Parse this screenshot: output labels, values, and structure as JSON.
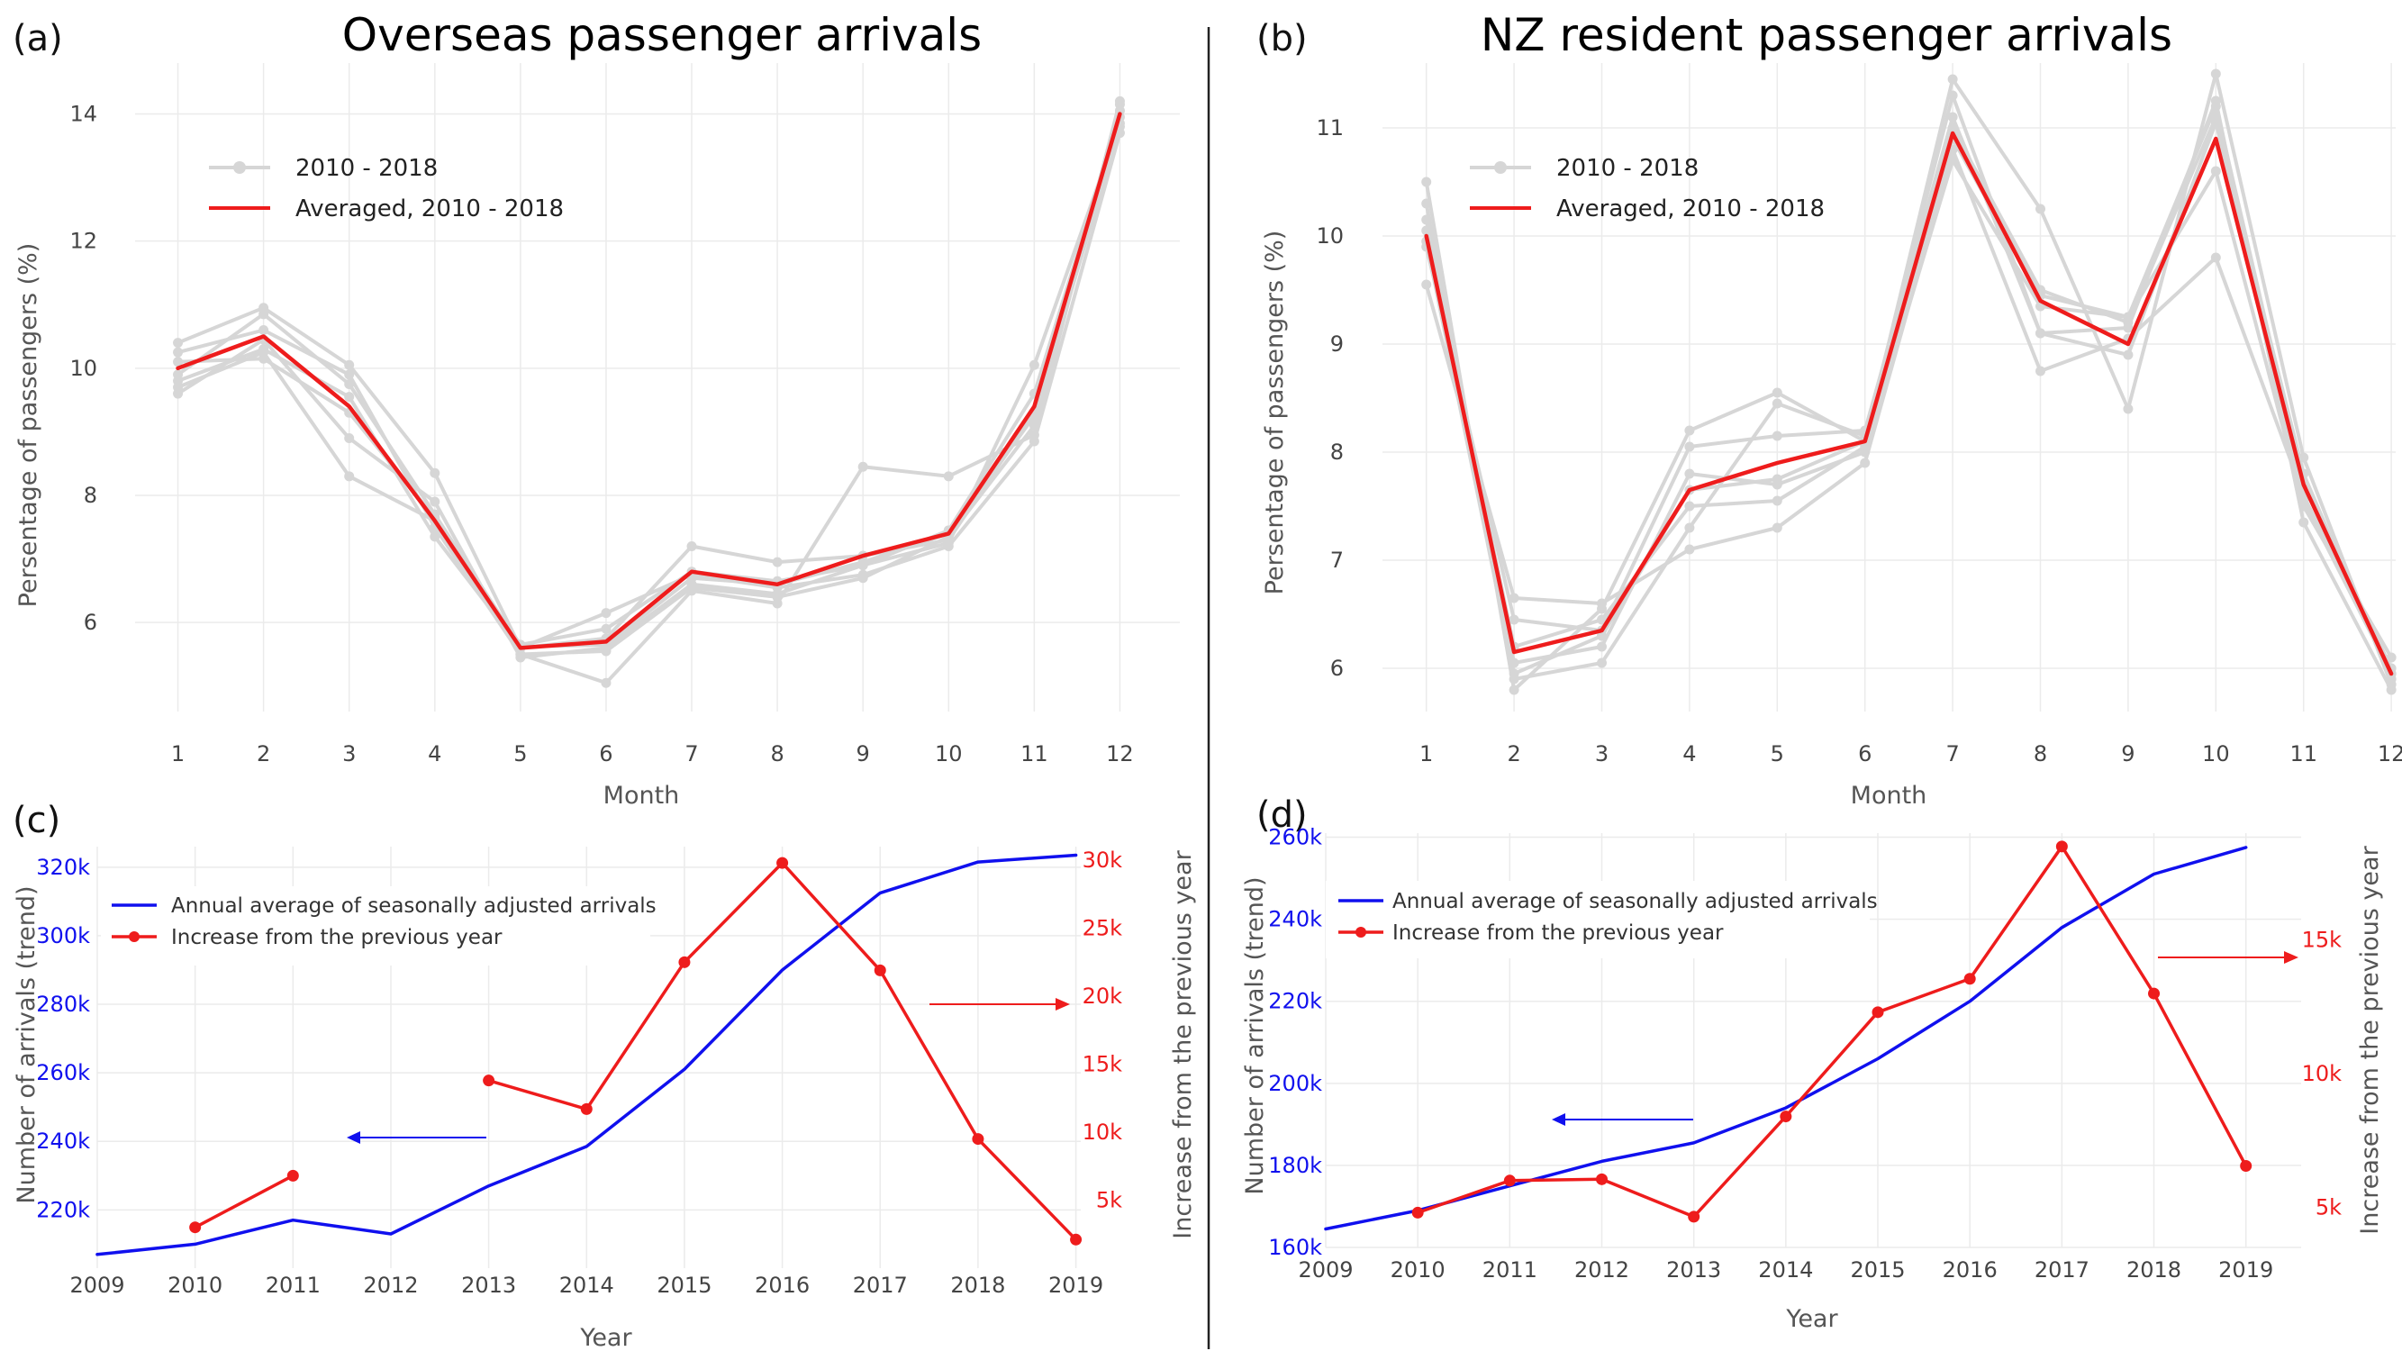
{
  "colors": {
    "gray_series": "#d6d6d6",
    "average": "#ee1c1c",
    "blue": "#1010ee",
    "red": "#ee1c1c",
    "grid": "#ebebeb",
    "divider": "#222222"
  },
  "panels": {
    "a": {
      "letter": "(a)"
    },
    "b": {
      "letter": "(b)"
    },
    "c": {
      "letter": "(c)"
    },
    "d": {
      "letter": "(d)"
    }
  },
  "chart_data": [
    {
      "id": "a",
      "type": "line",
      "title": "Overseas passenger arrivals",
      "xlabel": "Month",
      "ylabel": "Persentage of passengers (%)",
      "x": [
        1,
        2,
        3,
        4,
        5,
        6,
        7,
        8,
        9,
        10,
        11,
        12
      ],
      "xlim": [
        0.5,
        12.7
      ],
      "ylim": [
        4.6,
        14.8
      ],
      "yticks": [
        6,
        8,
        10,
        12,
        14
      ],
      "grid": true,
      "legend_position": "top-left",
      "legend": [
        "2010 - 2018",
        "Averaged, 2010 - 2018"
      ],
      "gray_series": [
        [
          10.4,
          10.95,
          10.05,
          8.35,
          5.6,
          6.15,
          6.75,
          6.55,
          6.75,
          7.2,
          8.85,
          13.7
        ],
        [
          10.25,
          10.6,
          9.9,
          7.5,
          5.5,
          5.05,
          6.5,
          6.3,
          8.45,
          8.3,
          8.95,
          14.2
        ],
        [
          9.6,
          10.45,
          8.9,
          7.9,
          5.45,
          5.6,
          6.6,
          6.45,
          6.9,
          7.25,
          10.05,
          13.85
        ],
        [
          9.8,
          10.3,
          9.55,
          7.35,
          5.6,
          5.75,
          7.2,
          6.95,
          7.05,
          7.3,
          9.3,
          14.05
        ],
        [
          9.7,
          10.25,
          8.3,
          7.6,
          5.65,
          5.9,
          6.8,
          6.65,
          6.9,
          7.45,
          9.6,
          13.95
        ],
        [
          10.1,
          10.15,
          9.3,
          7.65,
          5.5,
          5.55,
          6.55,
          6.4,
          6.7,
          7.35,
          9.1,
          14.15
        ],
        [
          9.9,
          10.85,
          9.75,
          7.7,
          5.62,
          5.65,
          6.7,
          6.6,
          6.95,
          7.4,
          9.25,
          13.8
        ]
      ],
      "average": [
        10.0,
        10.5,
        9.4,
        7.6,
        5.6,
        5.7,
        6.8,
        6.6,
        7.05,
        7.4,
        9.4,
        14.0
      ]
    },
    {
      "id": "b",
      "type": "line",
      "title": "NZ resident passenger arrivals",
      "xlabel": "Month",
      "ylabel": "Persentage of passengers (%)",
      "x": [
        1,
        2,
        3,
        4,
        5,
        6,
        7,
        8,
        9,
        10,
        11,
        12
      ],
      "xlim": [
        0.5,
        12.05
      ],
      "ylim": [
        5.6,
        11.6
      ],
      "yticks": [
        6,
        7,
        8,
        9,
        10,
        11
      ],
      "grid": true,
      "legend_position": "top-left",
      "legend": [
        "2010 - 2018",
        "Averaged, 2010 - 2018"
      ],
      "gray_series": [
        [
          10.5,
          5.8,
          6.55,
          8.2,
          8.55,
          8.1,
          11.45,
          10.25,
          8.4,
          11.5,
          7.95,
          5.85
        ],
        [
          9.55,
          6.65,
          6.6,
          7.1,
          7.3,
          7.9,
          10.8,
          8.75,
          9.05,
          9.8,
          7.6,
          5.95
        ],
        [
          10.3,
          5.9,
          6.05,
          7.3,
          8.45,
          8.15,
          11.3,
          9.1,
          9.15,
          11.25,
          7.35,
          5.8
        ],
        [
          10.15,
          6.05,
          6.2,
          7.8,
          7.7,
          8.0,
          10.7,
          9.35,
          9.25,
          10.6,
          7.5,
          6.1
        ],
        [
          9.9,
          6.45,
          6.35,
          8.05,
          8.15,
          8.2,
          11.1,
          9.1,
          8.9,
          11.05,
          7.8,
          5.9
        ],
        [
          10.05,
          6.2,
          6.45,
          7.5,
          7.55,
          8.05,
          10.9,
          9.45,
          9.25,
          11.2,
          7.7,
          6.0
        ],
        [
          9.95,
          5.95,
          6.3,
          7.65,
          7.75,
          8.1,
          11.0,
          9.5,
          9.2,
          11.1,
          7.55,
          5.95
        ]
      ],
      "average": [
        10.0,
        6.15,
        6.35,
        7.65,
        7.9,
        8.1,
        10.95,
        9.4,
        9.0,
        10.9,
        7.7,
        5.95
      ]
    },
    {
      "id": "c",
      "type": "line",
      "xlabel": "Year",
      "ylabel": "Number of arrivals (trend)",
      "ylabel_right": "Increase from the previous year",
      "x": [
        2009,
        2010,
        2011,
        2012,
        2013,
        2014,
        2015,
        2016,
        2017,
        2018,
        2019
      ],
      "xlim": [
        2009,
        2019.05
      ],
      "ylim": [
        203000,
        326000
      ],
      "yticks": [
        220000,
        240000,
        260000,
        280000,
        300000,
        320000
      ],
      "yticklabels": [
        "220k",
        "240k",
        "260k",
        "280k",
        "300k",
        "320k"
      ],
      "ylim_right": [
        0,
        31000
      ],
      "yticks_right": [
        5000,
        10000,
        15000,
        20000,
        25000,
        30000
      ],
      "yticklabels_right": [
        "5k",
        "10k",
        "15k",
        "20k",
        "25k",
        "30k"
      ],
      "grid": true,
      "legend_position": "top-left",
      "series": [
        {
          "name": "Annual average of seasonally adjusted arrivals",
          "axis": "left",
          "x": [
            2009,
            2010,
            2011,
            2012,
            2013,
            2014,
            2015,
            2016,
            2017,
            2018,
            2019
          ],
          "values": [
            207000,
            210000,
            217000,
            213000,
            227000,
            238500,
            261000,
            290000,
            312500,
            321500,
            323500
          ]
        },
        {
          "name": "Increase from the previous year",
          "axis": "right",
          "x": [
            2010,
            2011,
            null,
            2013,
            2014,
            2015,
            2016,
            2017,
            2018,
            2019
          ],
          "values": [
            3000,
            6800,
            null,
            13800,
            11700,
            22500,
            29800,
            21900,
            9500,
            2100
          ]
        }
      ],
      "annotations": [
        "blue arrow pointing left toward left axis",
        "red arrow pointing right toward right axis"
      ]
    },
    {
      "id": "d",
      "type": "line",
      "xlabel": "Year",
      "ylabel": "Number of arrivals (trend)",
      "ylabel_right": "Increase from the previous year",
      "x": [
        2009,
        2010,
        2011,
        2012,
        2013,
        2014,
        2015,
        2016,
        2017,
        2018,
        2019
      ],
      "xlim": [
        2009,
        2019.6
      ],
      "ylim": [
        160000,
        261000
      ],
      "yticks": [
        160000,
        180000,
        200000,
        220000,
        240000,
        260000
      ],
      "yticklabels": [
        "160k",
        "180k",
        "200k",
        "220k",
        "240k",
        "260k"
      ],
      "ylim_right": [
        3500,
        19000
      ],
      "yticks_right": [
        5000,
        10000,
        15000
      ],
      "yticklabels_right": [
        "5k",
        "10k",
        "15k"
      ],
      "grid": true,
      "legend_position": "top-left",
      "series": [
        {
          "name": "Annual average of seasonally adjusted arrivals",
          "axis": "left",
          "x": [
            2009,
            2010,
            2011,
            2012,
            2013,
            2014,
            2015,
            2016,
            2017,
            2018,
            2019
          ],
          "values": [
            164500,
            169000,
            175000,
            181000,
            185500,
            194000,
            206000,
            220000,
            238000,
            251000,
            257500
          ]
        },
        {
          "name": "Increase from the previous year",
          "axis": "right",
          "x": [
            2010,
            2011,
            2012,
            2013,
            2014,
            2015,
            2016,
            2017,
            2018,
            2019
          ],
          "values": [
            4800,
            6000,
            6050,
            4650,
            8400,
            12300,
            13550,
            18500,
            13000,
            6550
          ]
        }
      ],
      "annotations": [
        "blue arrow pointing left toward left axis",
        "red arrow pointing right toward right axis"
      ]
    }
  ]
}
